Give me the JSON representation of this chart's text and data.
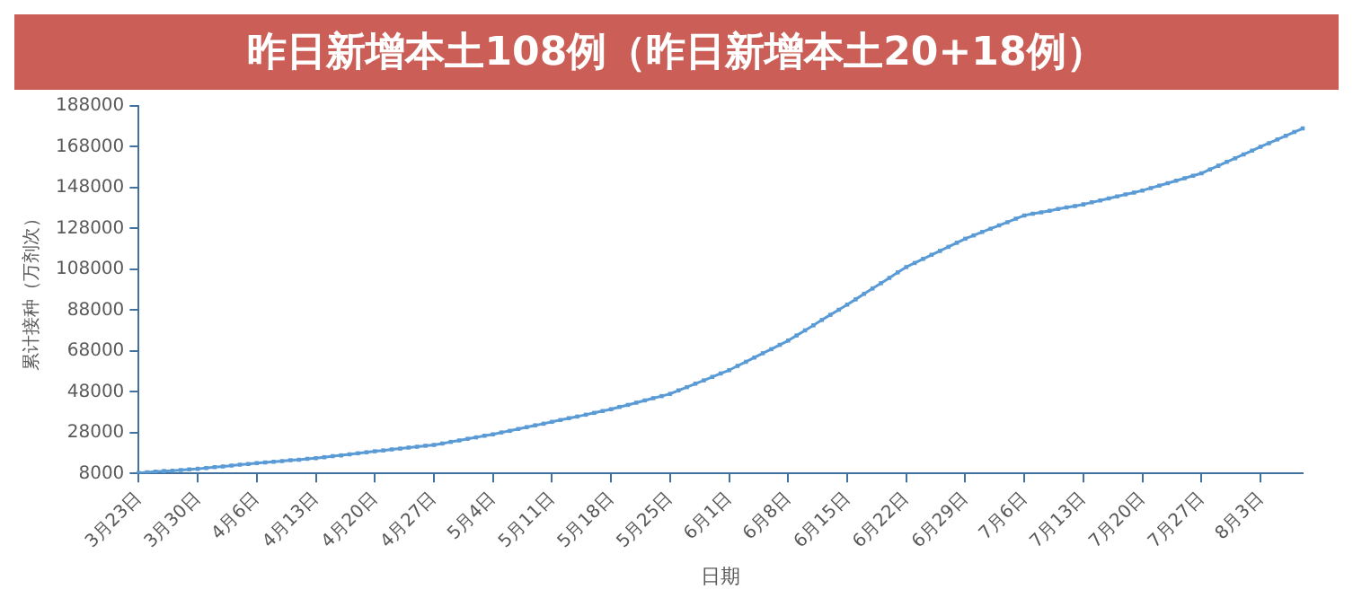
{
  "chart_data": {
    "type": "line",
    "title": "昨日新增本土108例（昨日新增本土20+18例）",
    "xlabel": "日期",
    "ylabel": "累计接种（万剂次）",
    "categories": [
      "3月23日",
      null,
      null,
      null,
      null,
      null,
      null,
      "3月30日",
      null,
      null,
      null,
      null,
      null,
      null,
      "4月6日",
      null,
      null,
      null,
      null,
      null,
      null,
      "4月13日",
      null,
      null,
      null,
      null,
      null,
      null,
      "4月20日",
      null,
      null,
      null,
      null,
      null,
      null,
      "4月27日",
      null,
      null,
      null,
      null,
      null,
      null,
      "5月4日",
      null,
      null,
      null,
      null,
      null,
      null,
      "5月11日",
      null,
      null,
      null,
      null,
      null,
      null,
      "5月18日",
      null,
      null,
      null,
      null,
      null,
      null,
      "5月25日",
      null,
      null,
      null,
      null,
      null,
      null,
      "6月1日",
      null,
      null,
      null,
      null,
      null,
      null,
      "6月8日",
      null,
      null,
      null,
      null,
      null,
      null,
      "6月15日",
      null,
      null,
      null,
      null,
      null,
      null,
      "6月22日",
      null,
      null,
      null,
      null,
      null,
      null,
      "6月29日",
      null,
      null,
      null,
      null,
      null,
      null,
      "7月6日",
      null,
      null,
      null,
      null,
      null,
      null,
      "7月13日",
      null,
      null,
      null,
      null,
      null,
      null,
      "7月20日",
      null,
      null,
      null,
      null,
      null,
      null,
      "7月27日",
      null,
      null,
      null,
      null,
      null,
      null,
      "8月3日",
      null,
      null,
      null,
      null,
      null
    ],
    "series": [
      {
        "color": "#5b9bd5",
        "values": [
          8300,
          8600,
          8900,
          9200,
          9400,
          9700,
          10000,
          10300,
          10700,
          11100,
          11500,
          11900,
          12300,
          12700,
          13100,
          13400,
          13800,
          14100,
          14500,
          14800,
          15200,
          15500,
          16000,
          16500,
          16900,
          17400,
          17900,
          18400,
          18900,
          19300,
          19800,
          20200,
          20700,
          21100,
          21600,
          22000,
          22700,
          23500,
          24200,
          25000,
          25700,
          26500,
          27200,
          28100,
          28900,
          29800,
          30700,
          31600,
          32400,
          33300,
          34200,
          35100,
          35900,
          36800,
          37700,
          38600,
          39500,
          40600,
          41600,
          42700,
          43800,
          44900,
          45900,
          47000,
          48700,
          50300,
          52000,
          53600,
          55300,
          57000,
          58600,
          60700,
          62700,
          64800,
          66900,
          68900,
          71000,
          73100,
          75600,
          78100,
          80600,
          83200,
          85700,
          88200,
          90700,
          93300,
          96000,
          98600,
          101200,
          103800,
          106500,
          109100,
          111100,
          113100,
          115100,
          117000,
          119000,
          121000,
          123000,
          124600,
          126300,
          127900,
          129500,
          131100,
          132800,
          134400,
          135200,
          135900,
          136700,
          137500,
          138300,
          139000,
          139800,
          140800,
          141700,
          142700,
          143700,
          144700,
          145600,
          146600,
          147800,
          149000,
          150200,
          151400,
          152600,
          153800,
          155000,
          156900,
          158700,
          160600,
          162400,
          164300,
          166100,
          168000,
          169800,
          171600,
          173400,
          175200,
          177000
        ]
      }
    ],
    "ylim": [
      8000,
      188000
    ],
    "yticks": [
      8000,
      28000,
      48000,
      68000,
      88000,
      108000,
      128000,
      148000,
      168000,
      188000
    ],
    "grid": false,
    "legend": false,
    "marker": "square",
    "line_style": "solid"
  }
}
